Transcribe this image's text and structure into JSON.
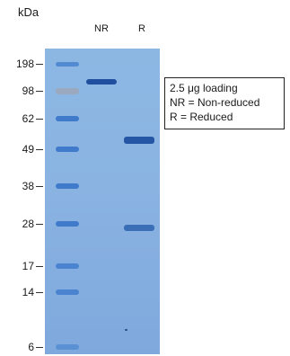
{
  "units": "kDa",
  "lanes": [
    {
      "label": "NR"
    },
    {
      "label": "R"
    }
  ],
  "markers": [
    {
      "kda": "198"
    },
    {
      "kda": "98"
    },
    {
      "kda": "62"
    },
    {
      "kda": "49"
    },
    {
      "kda": "38"
    },
    {
      "kda": "28"
    },
    {
      "kda": "17"
    },
    {
      "kda": "14"
    },
    {
      "kda": "6"
    }
  ],
  "legend": {
    "line1": "2.5 μg loading",
    "line2": "NR = Non-reduced",
    "line3": "R = Reduced"
  },
  "colors": {
    "gel": "#8ab3e2",
    "ladder_band": "#3d78c8",
    "sample_band": "#1f4f9e"
  }
}
